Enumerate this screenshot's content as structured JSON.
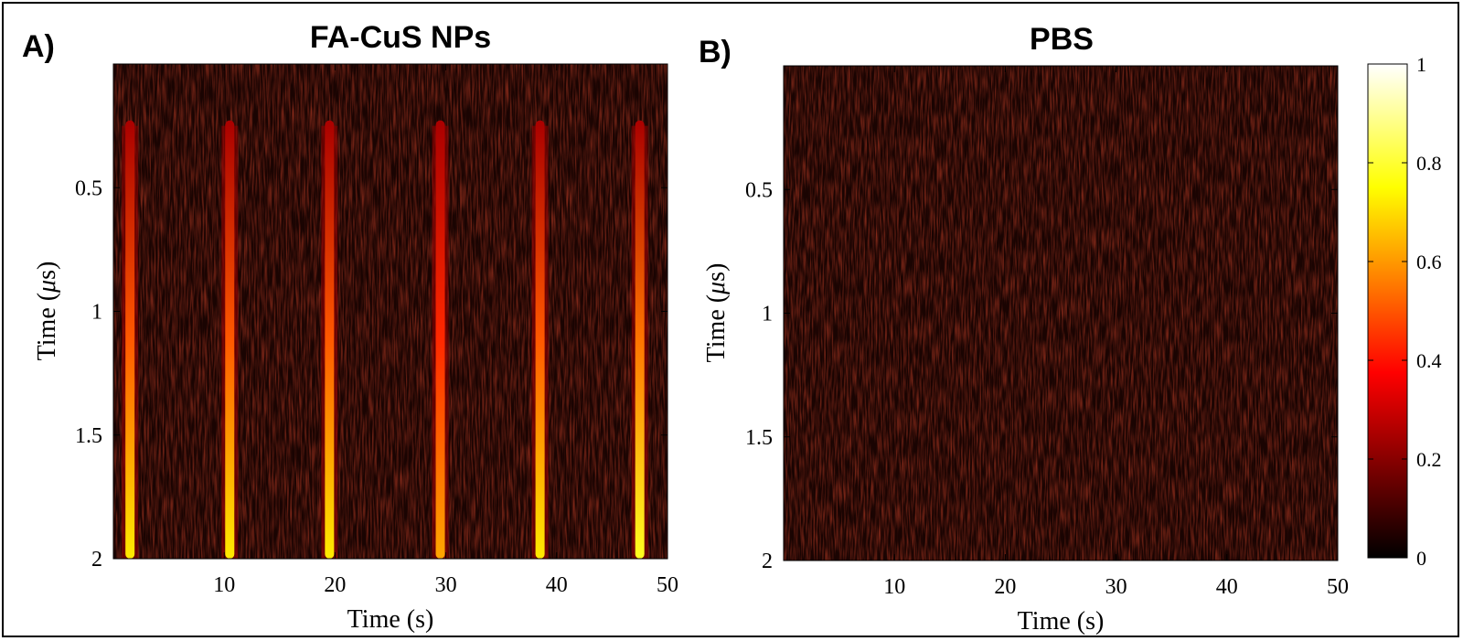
{
  "chart_data": [
    {
      "type": "heatmap",
      "panel_label": "A)",
      "title": "FA-CuS NPs",
      "xlabel": "Time (s)",
      "ylabel_prefix": "Time (",
      "ylabel_mu": "μ",
      "ylabel_suffix": "s)",
      "xlim": [
        0,
        50
      ],
      "ylim": [
        0,
        2
      ],
      "y_reversed": true,
      "xticks": [
        10,
        20,
        30,
        40,
        50
      ],
      "xtick_labels": [
        "10",
        "20",
        "30",
        "40",
        "50"
      ],
      "yticks": [
        0.5,
        1,
        1.5,
        2
      ],
      "ytick_labels": [
        "0.5",
        "1",
        "1.5",
        "2"
      ],
      "stripes": [
        {
          "x": 1.5,
          "peak": 0.72
        },
        {
          "x": 10.5,
          "peak": 0.72
        },
        {
          "x": 19.5,
          "peak": 0.72
        },
        {
          "x": 29.5,
          "peak": 0.62
        },
        {
          "x": 38.5,
          "peak": 0.72
        },
        {
          "x": 47.5,
          "peak": 0.78
        }
      ],
      "stripe_y_start": 0.25,
      "background_level": 0.05
    },
    {
      "type": "heatmap",
      "panel_label": "B)",
      "title": "PBS",
      "xlabel": "Time (s)",
      "ylabel_prefix": "Time (",
      "ylabel_mu": "μ",
      "ylabel_suffix": "s)",
      "xlim": [
        0,
        50
      ],
      "ylim": [
        0,
        2
      ],
      "y_reversed": true,
      "xticks": [
        10,
        20,
        30,
        40,
        50
      ],
      "xtick_labels": [
        "10",
        "20",
        "30",
        "40",
        "50"
      ],
      "yticks": [
        0.5,
        1,
        1.5,
        2
      ],
      "ytick_labels": [
        "0.5",
        "1",
        "1.5",
        "2"
      ],
      "stripes": [],
      "background_level": 0.06
    }
  ],
  "colorbar": {
    "colormap": "hot",
    "range": [
      0,
      1
    ],
    "ticks": [
      0,
      0.2,
      0.4,
      0.6,
      0.8,
      1
    ],
    "tick_labels": [
      "0",
      "0.2",
      "0.4",
      "0.6",
      "0.8",
      "1"
    ]
  }
}
